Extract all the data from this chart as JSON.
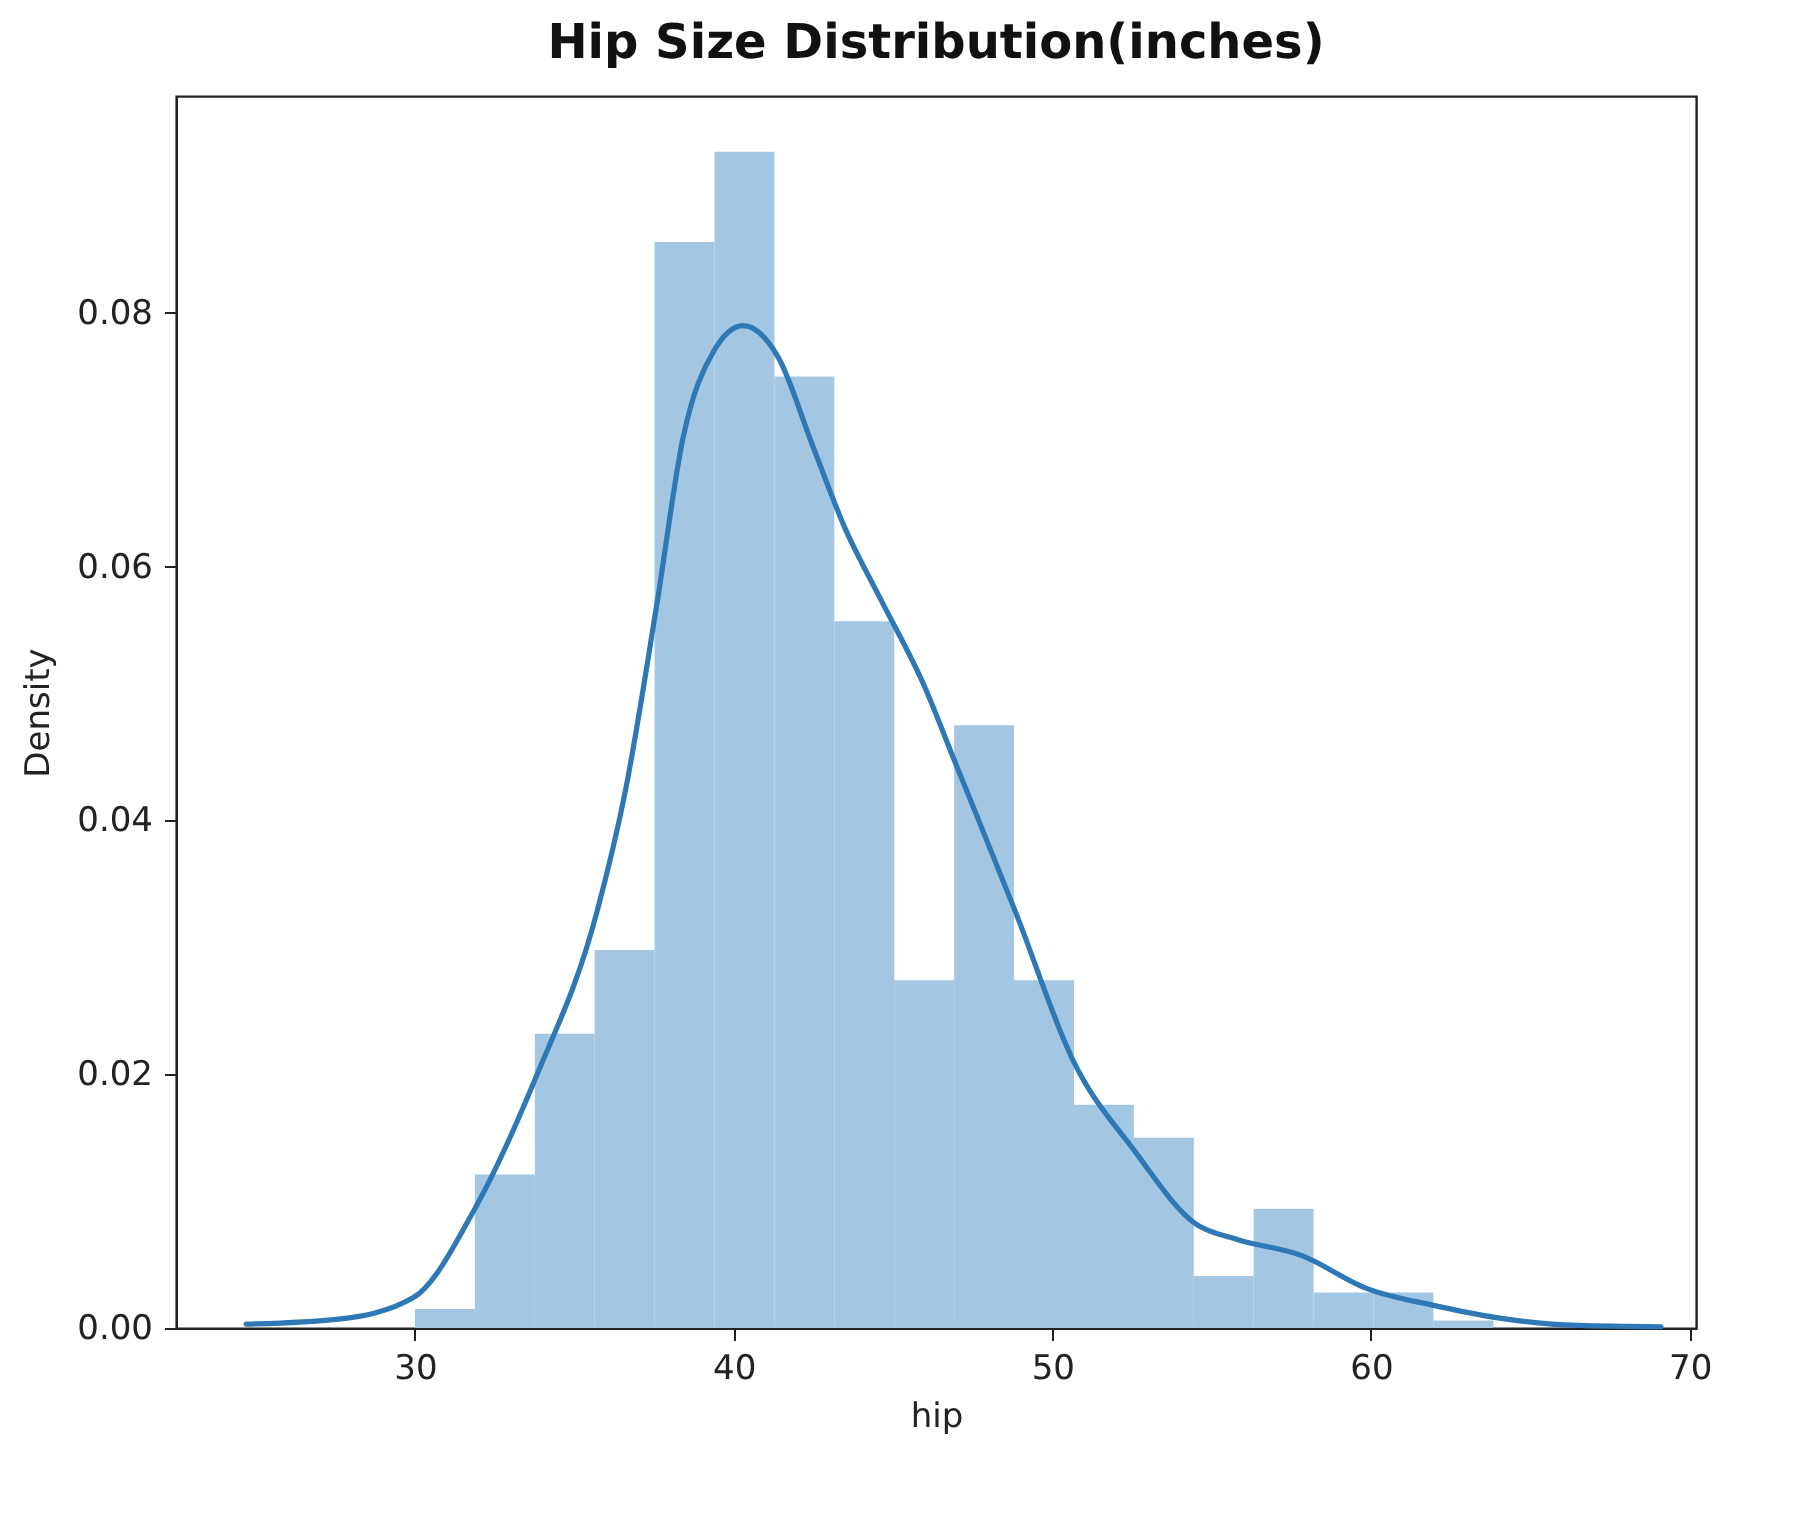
{
  "chart_data": {
    "type": "histogram",
    "title": "Hip Size Distribution(inches)",
    "xlabel": "hip",
    "ylabel": "Density",
    "bins": [
      30,
      31.88,
      33.76,
      35.64,
      37.52,
      39.4,
      41.28,
      43.16,
      45.04,
      46.92,
      48.8,
      50.68,
      52.56,
      54.44,
      56.32,
      58.2,
      60.08,
      61.96,
      63.84
    ],
    "values": [
      0.0015,
      0.0121,
      0.0232,
      0.0298,
      0.0856,
      0.0927,
      0.075,
      0.0557,
      0.0274,
      0.0475,
      0.0274,
      0.0176,
      0.015,
      0.0041,
      0.0094,
      0.0028,
      0.0028,
      0.0006
    ],
    "color": "#a3c6e2",
    "series": [
      {
        "type": "line",
        "color": "#2e78b5",
        "x": [
          24.7,
          27.6,
          29.95,
          31.9,
          33.8,
          35.7,
          36.6,
          37.6,
          38.4,
          39.4,
          40.3,
          41.4,
          42.5,
          43.5,
          44.6,
          46.0,
          46.9,
          48.86,
          50.65,
          52.57,
          54.5,
          55.78,
          57.83,
          59.88,
          61.93,
          63.98,
          66.5,
          69.1
        ],
        "values": [
          0.0003,
          0.0007,
          0.0024,
          0.0095,
          0.0198,
          0.0327,
          0.0423,
          0.0572,
          0.07,
          0.0771,
          0.079,
          0.0765,
          0.0694,
          0.063,
          0.0575,
          0.0505,
          0.0449,
          0.0327,
          0.0211,
          0.014,
          0.0082,
          0.007,
          0.0057,
          0.0031,
          0.0018,
          0.0008,
          0.0002,
          0.0001
        ]
      }
    ],
    "xlim": [
      22.5,
      70.2
    ],
    "ylim": [
      0,
      0.0971
    ],
    "xticks": [
      30,
      40,
      50,
      60,
      70
    ],
    "yticks": [
      {
        "value": 0,
        "label": "0.00"
      },
      {
        "value": 0.02,
        "label": "0.02"
      },
      {
        "value": 0.04,
        "label": "0.04"
      },
      {
        "value": 0.06,
        "label": "0.06"
      },
      {
        "value": 0.08,
        "label": "0.08"
      }
    ],
    "grid": false
  }
}
